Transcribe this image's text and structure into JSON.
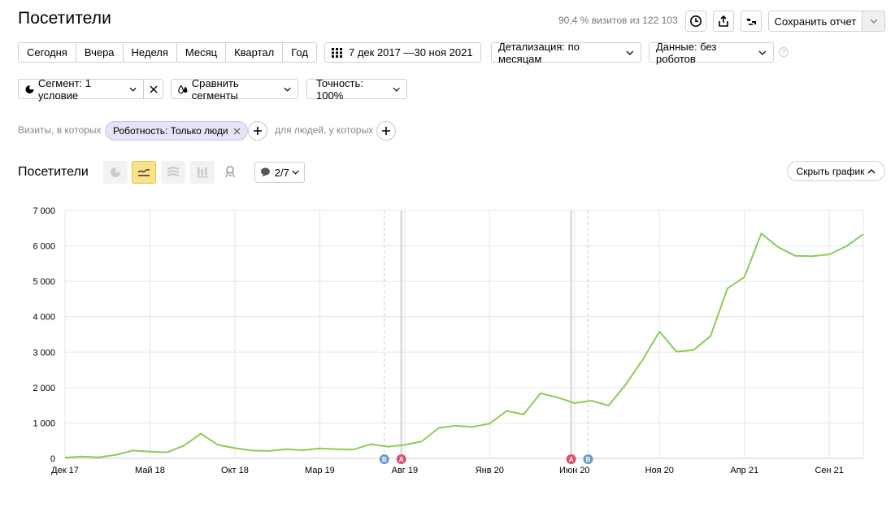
{
  "header": {
    "title": "Посетители",
    "visits_info": "90,4 % визитов из 122 103",
    "save_label": "Сохранить отчет"
  },
  "periods": [
    "Сегодня",
    "Вчера",
    "Неделя",
    "Месяц",
    "Квартал",
    "Год"
  ],
  "date_range": "7 дек 2017 —30 ноя 2021",
  "detail": "Детализация: по месяцам",
  "data_filter": "Данные: без роботов",
  "help": "?",
  "segment": "Сегмент: 1 условие",
  "compare": "Сравнить сегменты",
  "accuracy": "Точность: 100%",
  "filters": {
    "visits_prefix": "Визиты, в которых",
    "chip": "Роботность: Только люди",
    "people_text": "для людей, у которых"
  },
  "chart_header": {
    "title": "Посетители",
    "metrics_count": "2/7",
    "hide_label": "Скрыть график"
  },
  "colors": {
    "line": "#8ccc56",
    "accent_yellow": "#fde28c",
    "marker_blue": "#6c9ac7",
    "marker_red": "#df4e70"
  },
  "chart_data": {
    "type": "line",
    "title": "",
    "xlabel": "",
    "ylabel": "",
    "ylim": [
      0,
      7000
    ],
    "y_ticks": [
      0,
      1000,
      2000,
      3000,
      4000,
      5000,
      6000,
      7000
    ],
    "y_tick_labels": [
      "0",
      "1 000",
      "2 000",
      "3 000",
      "4 000",
      "5 000",
      "6 000",
      "7 000"
    ],
    "x_tick_labels": [
      {
        "label": "Дек 17",
        "index": 0
      },
      {
        "label": "Май 18",
        "index": 5
      },
      {
        "label": "Окт 18",
        "index": 10
      },
      {
        "label": "Мар 19",
        "index": 15
      },
      {
        "label": "Авг 19",
        "index": 20
      },
      {
        "label": "Янв 20",
        "index": 25
      },
      {
        "label": "Июн 20",
        "index": 30
      },
      {
        "label": "Ноя 20",
        "index": 35
      },
      {
        "label": "Апр 21",
        "index": 40
      },
      {
        "label": "Сен 21",
        "index": 45
      }
    ],
    "values": [
      20,
      50,
      30,
      100,
      220,
      190,
      170,
      360,
      700,
      380,
      290,
      220,
      210,
      260,
      230,
      280,
      260,
      250,
      400,
      330,
      380,
      480,
      860,
      920,
      890,
      980,
      1340,
      1240,
      1840,
      1720,
      1560,
      1630,
      1490,
      2080,
      2780,
      3580,
      3010,
      3060,
      3450,
      4800,
      5120,
      6350,
      5960,
      5720,
      5710,
      5760,
      5990,
      6330
    ],
    "grid": true,
    "markers": [
      {
        "label": "B",
        "index": 18.8,
        "color": "#6c9ac7",
        "style": "dashed"
      },
      {
        "label": "A",
        "index": 19.8,
        "color": "#df4e70",
        "style": "solid"
      },
      {
        "label": "A",
        "index": 29.8,
        "color": "#df4e70",
        "style": "solid"
      },
      {
        "label": "B",
        "index": 30.8,
        "color": "#6c9ac7",
        "style": "dashed"
      }
    ]
  }
}
